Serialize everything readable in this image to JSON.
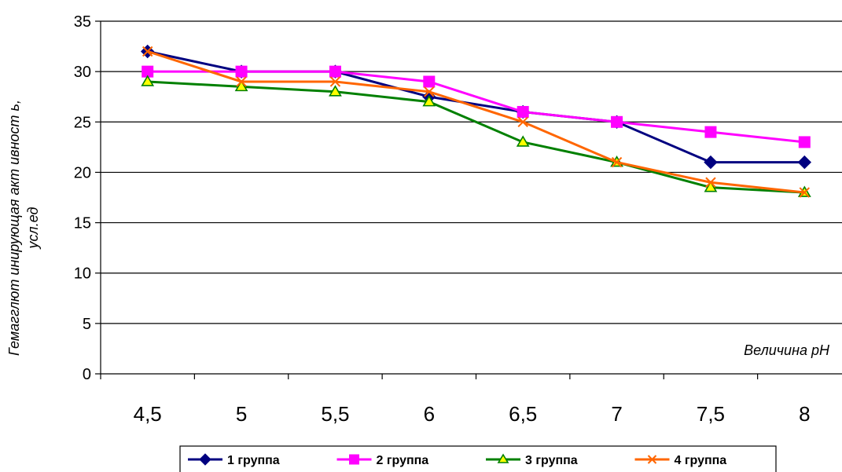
{
  "chart_data": {
    "type": "line",
    "title": "",
    "categories": [
      "4,5",
      "5",
      "5,5",
      "6",
      "6,5",
      "7",
      "7,5",
      "8"
    ],
    "ylim": [
      0,
      35
    ],
    "yticks": [
      0,
      5,
      10,
      15,
      20,
      25,
      30,
      35
    ],
    "ylabel_line1": "Гемагглют инирующая акт ивност ь,",
    "ylabel_line2": "усл.ед",
    "xlabel": "Величина pH",
    "grid": "horizontal",
    "legend_position": "bottom",
    "series": [
      {
        "name": "1 группа",
        "color": "#000080",
        "marker": "diamond",
        "values": [
          32,
          30,
          30,
          27.5,
          26,
          25,
          21,
          21
        ]
      },
      {
        "name": "2 группа",
        "color": "#FF00FF",
        "marker": "square",
        "values": [
          30,
          30,
          30,
          29,
          26,
          25,
          24,
          23
        ]
      },
      {
        "name": "3 группа",
        "color": "#008000",
        "marker": "triangle",
        "values": [
          29,
          28.5,
          28,
          27,
          23,
          21,
          18.5,
          18
        ]
      },
      {
        "name": "4 группа",
        "color": "#FF6600",
        "marker": "x",
        "values": [
          32,
          29,
          29,
          28,
          25,
          21,
          19,
          18
        ]
      }
    ]
  }
}
